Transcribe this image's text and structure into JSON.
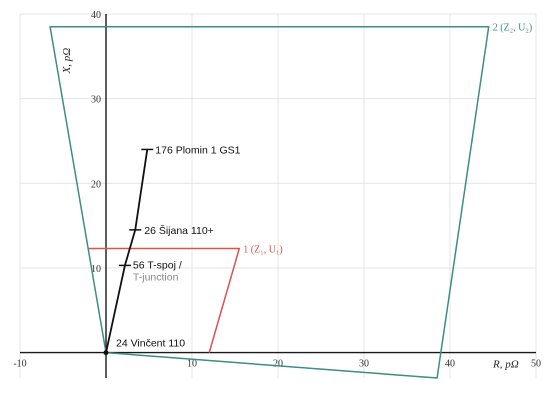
{
  "chart_data": {
    "type": "line",
    "title": "",
    "xlabel": "R, pΩ",
    "ylabel": "X, pΩ",
    "xlim": [
      -10,
      50
    ],
    "ylim": [
      -3,
      40
    ],
    "x_ticks": [
      -10,
      10,
      20,
      30,
      40,
      50
    ],
    "y_ticks": [
      10,
      20,
      30,
      40
    ],
    "grid": true,
    "colors": {
      "zone2": "#3e8e7e",
      "zone1": "#d9534f",
      "line": "#111111",
      "grid": "#e4e4e4"
    },
    "series": [
      {
        "name": "2 (Z₂, U₂)",
        "closed": true,
        "color": "#3e8e7e",
        "points": [
          [
            -6.5,
            38.5
          ],
          [
            44.5,
            38.5
          ],
          [
            38.5,
            -3
          ],
          [
            0,
            0
          ]
        ]
      },
      {
        "name": "1 (Z₁, U₁)",
        "closed": false,
        "color": "#d9534f",
        "points": [
          [
            -2,
            12.3
          ],
          [
            15.5,
            12.3
          ],
          [
            12,
            0
          ]
        ]
      },
      {
        "name": "",
        "closed": false,
        "color": "#111111",
        "points": [
          [
            0,
            0
          ],
          [
            2.2,
            10.3
          ],
          [
            3.4,
            14.5
          ],
          [
            4.8,
            24
          ]
        ]
      }
    ],
    "annotations": [
      {
        "text": "176 Plomin 1 GS1",
        "x": 4.8,
        "y": 24
      },
      {
        "text": "26 Šijana 110+",
        "x": 3.4,
        "y": 14.5
      },
      {
        "text": "56 T-spoj /",
        "sub": "T-junction",
        "x": 2.2,
        "y": 10.3
      },
      {
        "text": "24 Vinčent 110",
        "x": 0,
        "y": 0
      }
    ]
  }
}
